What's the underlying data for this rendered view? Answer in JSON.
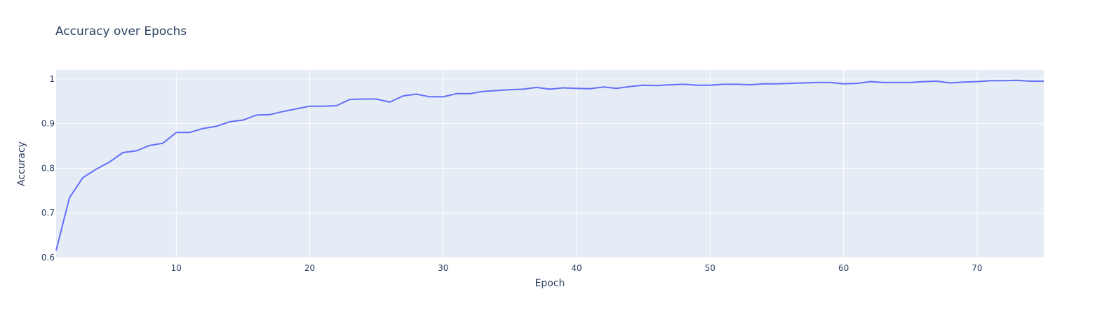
{
  "chart_data": {
    "type": "line",
    "title": "Accuracy over Epochs",
    "xlabel": "Epoch",
    "ylabel": "Accuracy",
    "xlim": [
      1,
      75
    ],
    "ylim": [
      0.6,
      1.02
    ],
    "xticks": [
      10,
      20,
      30,
      40,
      50,
      60,
      70
    ],
    "yticks": [
      0.6,
      0.7,
      0.8,
      0.9,
      1
    ],
    "ytick_labels": [
      "0.6",
      "0.7",
      "0.8",
      "0.9",
      "1"
    ],
    "grid": true,
    "colors": {
      "plot_bg": "#e5ecf6",
      "grid": "#ffffff",
      "line": "#636efa",
      "text": "#2a3f5f"
    },
    "series": [
      {
        "x": [
          1,
          2,
          3,
          4,
          5,
          6,
          7,
          8,
          9,
          10,
          11,
          12,
          13,
          14,
          15,
          16,
          17,
          18,
          19,
          20,
          21,
          22,
          23,
          24,
          25,
          26,
          27,
          28,
          29,
          30,
          31,
          32,
          33,
          34,
          35,
          36,
          37,
          38,
          39,
          40,
          41,
          42,
          43,
          44,
          45,
          46,
          47,
          48,
          49,
          50,
          51,
          52,
          53,
          54,
          55,
          56,
          57,
          58,
          59,
          60,
          61,
          62,
          63,
          64,
          65,
          66,
          67,
          68,
          69,
          70,
          71,
          72,
          73,
          74,
          75
        ],
        "y": [
          0.616,
          0.734,
          0.779,
          0.798,
          0.814,
          0.835,
          0.839,
          0.851,
          0.856,
          0.88,
          0.88,
          0.889,
          0.894,
          0.904,
          0.908,
          0.919,
          0.92,
          0.927,
          0.933,
          0.939,
          0.939,
          0.94,
          0.954,
          0.955,
          0.955,
          0.948,
          0.962,
          0.966,
          0.96,
          0.96,
          0.967,
          0.967,
          0.972,
          0.974,
          0.976,
          0.977,
          0.981,
          0.977,
          0.98,
          0.979,
          0.978,
          0.982,
          0.979,
          0.983,
          0.986,
          0.985,
          0.987,
          0.988,
          0.986,
          0.986,
          0.988,
          0.988,
          0.987,
          0.989,
          0.989,
          0.99,
          0.991,
          0.992,
          0.992,
          0.989,
          0.99,
          0.994,
          0.992,
          0.992,
          0.992,
          0.994,
          0.995,
          0.991,
          0.993,
          0.994,
          0.996,
          0.996,
          0.997,
          0.995,
          0.995
        ]
      }
    ]
  }
}
